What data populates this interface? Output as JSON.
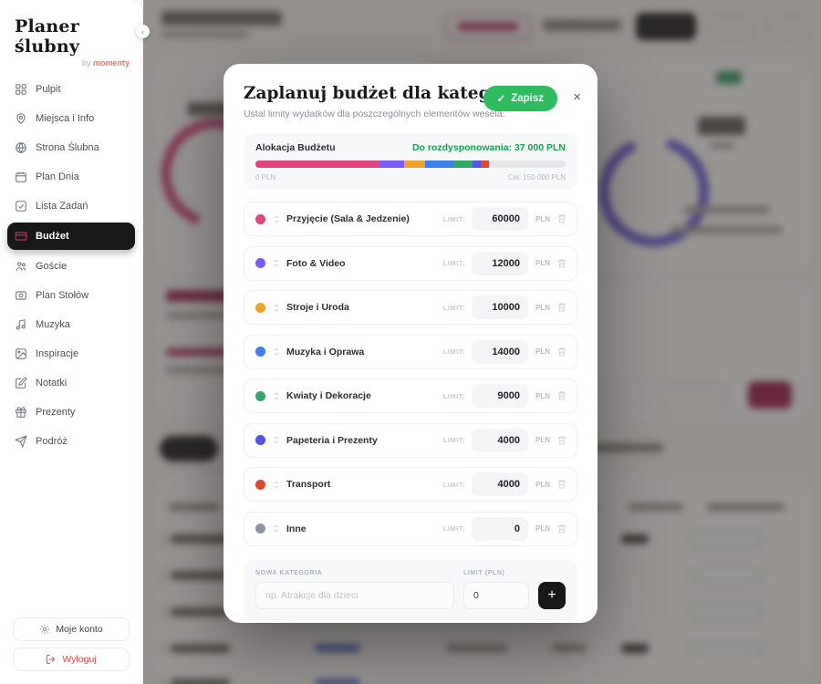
{
  "app": {
    "logo": "Planer ślubny",
    "logo_by": "by",
    "logo_brand": "momenty",
    "collapse_glyph": "‹"
  },
  "sidebar": {
    "items": [
      {
        "label": "Pulpit"
      },
      {
        "label": "Miejsca i Info"
      },
      {
        "label": "Strona Ślubna"
      },
      {
        "label": "Plan Dnia"
      },
      {
        "label": "Lista Zadań"
      },
      {
        "label": "Budżet"
      },
      {
        "label": "Goście"
      },
      {
        "label": "Plan Stołów"
      },
      {
        "label": "Muzyka"
      },
      {
        "label": "Inspiracje"
      },
      {
        "label": "Notatki"
      },
      {
        "label": "Prezenty"
      },
      {
        "label": "Podróż"
      }
    ],
    "active_item": "Budżet",
    "account_label": "Moje konto",
    "logout_label": "Wyloguj"
  },
  "modal": {
    "title": "Zaplanuj budżet dla kategorii",
    "subtitle": "Ustal limity wydatków dla poszczególnych elementów wesela.",
    "save_label": "Zapisz",
    "save_check": "✓",
    "close_glyph": "×",
    "allocation": {
      "label": "Alokacja Budżetu",
      "remaining_label": "Do rozdysponowania: 37 000 PLN",
      "remaining_color": "#17a34a",
      "min_label": "0 PLN",
      "goal_label": "Cel: 150 000 PLN",
      "track_color": "#e4e6e8",
      "segments": [
        {
          "color": "#e2447d",
          "percent": 40
        },
        {
          "color": "#7c5cf6",
          "percent": 8
        },
        {
          "color": "#f0a12c",
          "percent": 6.7
        },
        {
          "color": "#3f7ef0",
          "percent": 9.3
        },
        {
          "color": "#33a866",
          "percent": 6
        },
        {
          "color": "#5053ee",
          "percent": 2.7
        },
        {
          "color": "#e5452c",
          "percent": 2.7
        }
      ]
    },
    "limit_label": "LIMIT:",
    "currency": "PLN",
    "categories": [
      {
        "name": "Przyjęcie (Sala & Jedzenie)",
        "limit": "60000",
        "color": "#e2447d"
      },
      {
        "name": "Foto & Video",
        "limit": "12000",
        "color": "#7c5cf6"
      },
      {
        "name": "Stroje i Uroda",
        "limit": "10000",
        "color": "#f0a12c"
      },
      {
        "name": "Muzyka i Oprawa",
        "limit": "14000",
        "color": "#3f7ef0"
      },
      {
        "name": "Kwiaty i Dekoracje",
        "limit": "9000",
        "color": "#33a866"
      },
      {
        "name": "Papeteria i Prezenty",
        "limit": "4000",
        "color": "#5053ee"
      },
      {
        "name": "Transport",
        "limit": "4000",
        "color": "#e5452c"
      },
      {
        "name": "Inne",
        "limit": "0",
        "color": "#8e96a4"
      }
    ],
    "new_category": {
      "name_label": "NOWA KATEGORIA",
      "name_placeholder": "np. Atrakcje dla dzieci",
      "limit_label": "LIMIT (PLN)",
      "limit_value": "0",
      "add_label": "+"
    }
  }
}
